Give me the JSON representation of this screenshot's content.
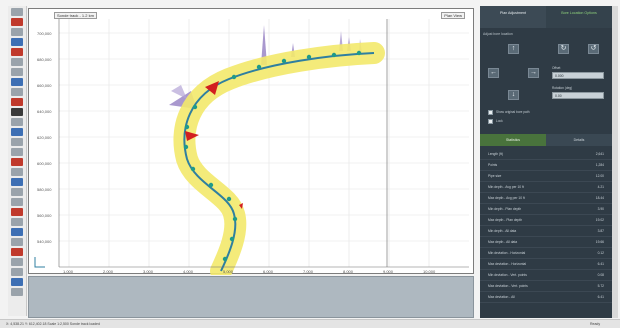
{
  "plot": {
    "label_left": "Sonde track - 1.2 km",
    "label_right": "Plan View",
    "y_ticks": [
      "700,000",
      "680,000",
      "660,000",
      "640,000",
      "620,000",
      "600,000",
      "580,000",
      "560,000",
      "540,000"
    ],
    "x_ticks": [
      "1,000",
      "2,000",
      "3,000",
      "4,000",
      "5,000",
      "6,000",
      "7,000",
      "8,000",
      "9,000",
      "10,000"
    ]
  },
  "panel": {
    "tab_1": "Plan Adjustment",
    "tab_2": "Bore Location Options",
    "subtitle": "Adjust bore location",
    "field_1_label": "Offset",
    "field_1_value": "0.000",
    "field_2_label": "Rotation (deg)",
    "field_2_value": "0.00",
    "check_1": "Show original bore path",
    "check_2": "Lock",
    "subtab_1": "Statistics",
    "subtab_2": "Details",
    "stats": [
      {
        "label": "Length (ft)",
        "value": "2,641"
      },
      {
        "label": "Points",
        "value": "1,284"
      },
      {
        "label": "Pipe size",
        "value": "12.00"
      },
      {
        "label": "Min depth - Avg per 10 ft",
        "value": "4.21"
      },
      {
        "label": "Max depth - Avg per 10 ft",
        "value": "18.44"
      },
      {
        "label": "Min depth - Plan depth",
        "value": "3.90"
      },
      {
        "label": "Max depth - Plan depth",
        "value": "19.02"
      },
      {
        "label": "Min depth - All data",
        "value": "3.87"
      },
      {
        "label": "Max depth - All data",
        "value": "19.66"
      },
      {
        "label": "Min deviation - Horizontal",
        "value": "0.12"
      },
      {
        "label": "Max deviation - Horizontal",
        "value": "6.41"
      },
      {
        "label": "Min deviation - Vert. points",
        "value": "0.08"
      },
      {
        "label": "Max deviation - Vert. points",
        "value": "5.72"
      },
      {
        "label": "Max deviation - All",
        "value": "6.41"
      }
    ]
  },
  "status": {
    "left": "X: 4,538.21  Y: 612,402.18  Scale 1:2,500  Sonde track loaded",
    "right": "Ready"
  },
  "colors": {
    "track_band": "#f3e96b",
    "track_line": "#2f7fa0",
    "markers": "#1f9a8a",
    "flags": "#d21f1f",
    "spikes": "#9a86c6"
  }
}
